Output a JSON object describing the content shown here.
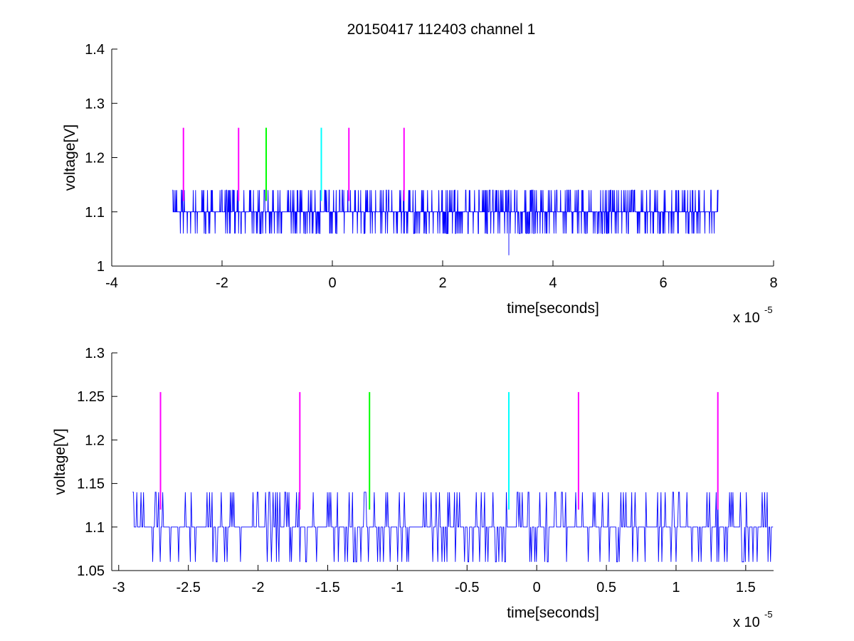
{
  "figure": {
    "title": "20150417 112403 channel 1"
  },
  "chart_data": [
    {
      "type": "line",
      "title": "20150417 112403 channel 1",
      "xlabel": "time[seconds]",
      "ylabel": "voltage[V]",
      "x_multiplier": "x 10",
      "x_exponent": "-5",
      "xlim": [
        -4,
        8
      ],
      "ylim": [
        1.0,
        1.4
      ],
      "xticks": [
        "-4",
        "-2",
        "0",
        "2",
        "4",
        "6",
        "8"
      ],
      "yticks": [
        "1",
        "1.1",
        "1.2",
        "1.3",
        "1.4"
      ],
      "grid": false,
      "series": [
        {
          "color": "#0000ff",
          "x_range": [
            -2.9,
            7.0
          ],
          "baseline": 1.1,
          "levels": [
            1.06,
            1.14
          ],
          "min_spike": {
            "x": 3.2,
            "y": 1.02
          }
        }
      ],
      "markers": [
        {
          "x": -2.7,
          "y0": 1.12,
          "y1": 1.255,
          "color": "#ff00ff"
        },
        {
          "x": -1.7,
          "y0": 1.12,
          "y1": 1.255,
          "color": "#ff00ff"
        },
        {
          "x": -1.2,
          "y0": 1.12,
          "y1": 1.255,
          "color": "#00ff00"
        },
        {
          "x": -0.2,
          "y0": 1.12,
          "y1": 1.255,
          "color": "#00ffff"
        },
        {
          "x": 0.3,
          "y0": 1.12,
          "y1": 1.255,
          "color": "#ff00ff"
        },
        {
          "x": 1.3,
          "y0": 1.12,
          "y1": 1.255,
          "color": "#ff00ff"
        }
      ]
    },
    {
      "type": "line",
      "xlabel": "time[seconds]",
      "ylabel": "voltage[V]",
      "x_multiplier": "x 10",
      "x_exponent": "-5",
      "xlim": [
        -3.05,
        1.7
      ],
      "ylim": [
        1.05,
        1.3
      ],
      "xticks": [
        "-3",
        "-2.5",
        "-2",
        "-1.5",
        "-1",
        "-0.5",
        "0",
        "0.5",
        "1",
        "1.5"
      ],
      "yticks": [
        "1.05",
        "1.1",
        "1.15",
        "1.2",
        "1.25",
        "1.3"
      ],
      "grid": false,
      "series": [
        {
          "color": "#0000ff",
          "x_range": [
            -2.9,
            1.7
          ],
          "baseline": 1.1,
          "levels": [
            1.06,
            1.14
          ]
        }
      ],
      "markers": [
        {
          "x": -2.7,
          "y0": 1.12,
          "y1": 1.255,
          "color": "#ff00ff"
        },
        {
          "x": -1.7,
          "y0": 1.12,
          "y1": 1.255,
          "color": "#ff00ff"
        },
        {
          "x": -1.2,
          "y0": 1.12,
          "y1": 1.255,
          "color": "#00ff00"
        },
        {
          "x": -0.2,
          "y0": 1.12,
          "y1": 1.255,
          "color": "#00ffff"
        },
        {
          "x": 0.3,
          "y0": 1.12,
          "y1": 1.255,
          "color": "#ff00ff"
        },
        {
          "x": 1.3,
          "y0": 1.12,
          "y1": 1.255,
          "color": "#ff00ff"
        }
      ]
    }
  ]
}
